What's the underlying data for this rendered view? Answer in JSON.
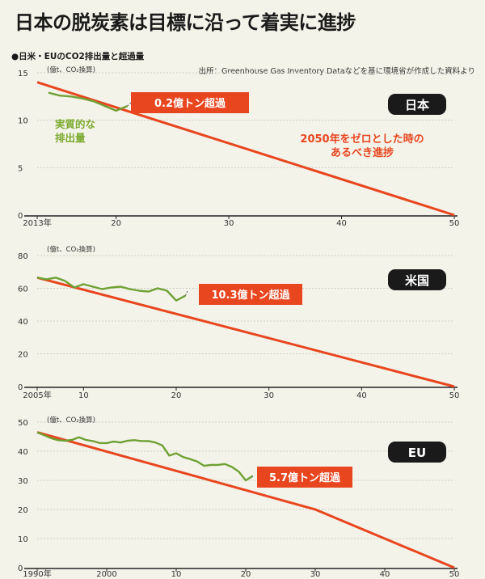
{
  "title": "日本の脱炭素は目標に沿って着実に進捗",
  "subtitle": "●日米・EUのCO2排出量と超過量",
  "source": "出所：Greenhouse Gas Inventory Dataなどを基に環境省が作成した資料より",
  "colors": {
    "target_path": "#e8461f",
    "actual": "#6fa033",
    "badge_bg": "#1a1a1a",
    "background": "#f4f3ea",
    "grid": "#cfcfc7"
  },
  "chart_data": [
    {
      "type": "line",
      "badge": "日本",
      "unit_label": "(億t、CO₂換算)",
      "y_ticks": [
        "15",
        "10",
        "5",
        "0"
      ],
      "ylim": [
        0,
        15
      ],
      "xlim": [
        2013,
        2050
      ],
      "x_ticks": [
        {
          "year": 2013,
          "label": "2013年"
        },
        {
          "year": 2020,
          "label": "20"
        },
        {
          "year": 2030,
          "label": "30"
        },
        {
          "year": 2040,
          "label": "40"
        },
        {
          "year": 2050,
          "label": "50"
        }
      ],
      "callout": "0.2億トン超過",
      "path_label": [
        "2050年をゼロとした時の",
        "あるべき進捗"
      ],
      "actual_label": [
        "実質的な",
        "排出量"
      ],
      "series": [
        {
          "key": "target",
          "x": [
            2013,
            2050
          ],
          "y": [
            14.0,
            0
          ]
        },
        {
          "key": "actual",
          "x": [
            2014,
            2015,
            2016,
            2017,
            2018,
            2019,
            2020,
            2021
          ],
          "y": [
            12.9,
            12.6,
            12.5,
            12.3,
            12.0,
            11.5,
            11.0,
            11.5
          ]
        }
      ]
    },
    {
      "type": "line",
      "badge": "米国",
      "unit_label": "(億t、CO₂換算)",
      "y_ticks": [
        "80",
        "60",
        "40",
        "20",
        "0"
      ],
      "ylim": [
        0,
        80
      ],
      "xlim": [
        2005,
        2050
      ],
      "x_ticks": [
        {
          "year": 2005,
          "label": "2005年"
        },
        {
          "year": 2010,
          "label": "10"
        },
        {
          "year": 2020,
          "label": "20"
        },
        {
          "year": 2030,
          "label": "30"
        },
        {
          "year": 2040,
          "label": "40"
        },
        {
          "year": 2050,
          "label": "50"
        }
      ],
      "callout": "10.3億トン超過",
      "series": [
        {
          "key": "target",
          "x": [
            2005,
            2050
          ],
          "y": [
            66.5,
            0
          ]
        },
        {
          "key": "actual",
          "x": [
            2005,
            2006,
            2007,
            2008,
            2009,
            2010,
            2011,
            2012,
            2013,
            2014,
            2015,
            2016,
            2017,
            2018,
            2019,
            2020,
            2021
          ],
          "y": [
            66.5,
            65.5,
            66.5,
            64.5,
            60.5,
            62.5,
            61.0,
            59.5,
            60.5,
            61.0,
            59.5,
            58.5,
            58.0,
            60.0,
            58.5,
            52.5,
            55.5
          ]
        }
      ]
    },
    {
      "type": "line",
      "badge": "EU",
      "unit_label": "(億t、CO₂換算)",
      "y_ticks": [
        "50",
        "40",
        "30",
        "20",
        "10",
        "0"
      ],
      "ylim": [
        0,
        50
      ],
      "xlim": [
        1990,
        2050
      ],
      "x_ticks": [
        {
          "year": 1990,
          "label": "1990年"
        },
        {
          "year": 2000,
          "label": "2000"
        },
        {
          "year": 2010,
          "label": "10"
        },
        {
          "year": 2020,
          "label": "20"
        },
        {
          "year": 2030,
          "label": "30"
        },
        {
          "year": 2040,
          "label": "40"
        },
        {
          "year": 2050,
          "label": "50"
        }
      ],
      "callout": "5.7億トン超過",
      "series": [
        {
          "key": "target",
          "x": [
            1990,
            2030,
            2050
          ],
          "y": [
            46.5,
            20.0,
            0
          ]
        },
        {
          "key": "actual",
          "x": [
            1990,
            1991,
            1992,
            1993,
            1994,
            1995,
            1996,
            1997,
            1998,
            1999,
            2000,
            2001,
            2002,
            2003,
            2004,
            2005,
            2006,
            2007,
            2008,
            2009,
            2010,
            2011,
            2012,
            2013,
            2014,
            2015,
            2016,
            2017,
            2018,
            2019,
            2020,
            2021
          ],
          "y": [
            46.5,
            45.5,
            44.5,
            43.8,
            43.6,
            43.9,
            44.8,
            43.9,
            43.5,
            42.8,
            42.8,
            43.3,
            43.0,
            43.6,
            43.8,
            43.5,
            43.5,
            43.0,
            42.0,
            38.5,
            39.3,
            38.0,
            37.3,
            36.5,
            35.0,
            35.3,
            35.3,
            35.6,
            34.6,
            33.0,
            30.0,
            31.5
          ]
        }
      ]
    }
  ]
}
